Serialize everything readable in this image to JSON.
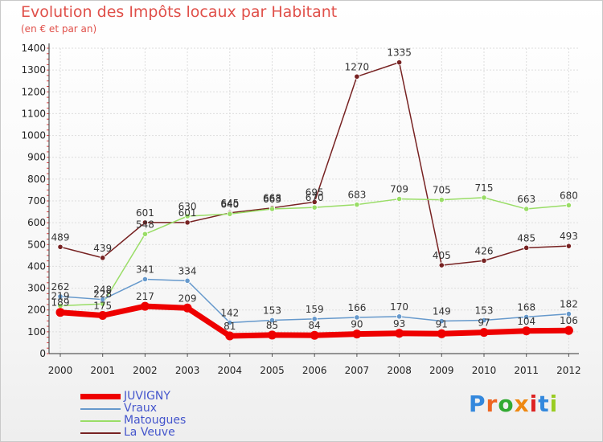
{
  "header": {
    "title": "Evolution des Impôts locaux par Habitant",
    "subtitle": "(en € et par an)"
  },
  "logo": {
    "text": "Proxiti"
  },
  "colors": {
    "JUVIGNY": "#ee0000",
    "Vraux": "#6699cc",
    "Matougues": "#99dd66",
    "La Veuve": "#772222",
    "title": "#e0504a",
    "legend_text": "#4455cc"
  },
  "chart_data": {
    "type": "line",
    "title": "Evolution des Impôts locaux par Habitant",
    "subtitle": "(en € et par an)",
    "xlabel": "",
    "ylabel": "",
    "x": [
      "2000",
      "2001",
      "2002",
      "2003",
      "2004",
      "2005",
      "2006",
      "2007",
      "2008",
      "2009",
      "2010",
      "2011",
      "2012"
    ],
    "ylim": [
      0,
      1400
    ],
    "yticks": [
      0,
      100,
      200,
      300,
      400,
      500,
      600,
      700,
      800,
      900,
      1000,
      1100,
      1200,
      1300,
      1400
    ],
    "grid": true,
    "legend_position": "bottom-left",
    "series": [
      {
        "name": "La Veuve",
        "color": "#772222",
        "values": [
          489,
          439,
          601,
          601,
          645,
          668,
          695,
          1270,
          1335,
          405,
          426,
          485,
          493
        ]
      },
      {
        "name": "Matougues",
        "color": "#99dd66",
        "values": [
          219,
          228,
          548,
          630,
          640,
          663,
          670,
          683,
          709,
          705,
          715,
          663,
          680
        ]
      },
      {
        "name": "Vraux",
        "color": "#6699cc",
        "values": [
          262,
          248,
          341,
          334,
          142,
          153,
          159,
          166,
          170,
          149,
          153,
          168,
          182
        ]
      },
      {
        "name": "JUVIGNY",
        "color": "#ee0000",
        "values": [
          189,
          175,
          217,
          209,
          81,
          85,
          84,
          90,
          93,
          91,
          97,
          104,
          106
        ]
      }
    ],
    "legend": [
      "JUVIGNY",
      "Vraux",
      "Matougues",
      "La Veuve"
    ]
  }
}
